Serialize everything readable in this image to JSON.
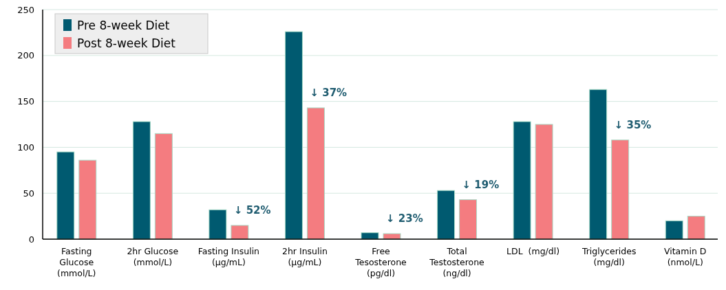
{
  "chart_data": {
    "type": "bar",
    "categories": [
      "Fasting\nGlucose\n(mmol/L)",
      "2hr Glucose\n(mmol/L)",
      "Fasting Insulin\n(µg/mL)",
      "2hr Insulin\n(µg/mL)",
      "Free\nTesosterone\n(pg/dl)",
      "Total\nTestosterone\n(ng/dl)",
      "LDL  (mg/dl)",
      "Triglycerides\n(mg/dl)",
      "Vitamin D\n(nmol/L)"
    ],
    "series": [
      {
        "name": "Pre 8-week Diet",
        "color": "#005a70",
        "values": [
          95,
          128,
          32,
          226,
          7,
          53,
          128,
          163,
          20
        ]
      },
      {
        "name": "Post 8-week Diet",
        "color": "#f47c80",
        "values": [
          86,
          115,
          15,
          143,
          6,
          43,
          125,
          108,
          25
        ]
      }
    ],
    "annotations": [
      {
        "text": "↓ 52%",
        "x": "Fasting Insulin\n(µg/mL)",
        "y": 15
      },
      {
        "text": "↓ 37%",
        "x": "2hr Insulin\n(µg/mL)",
        "y": 143
      },
      {
        "text": "↓ 23%",
        "x": "Free\nTesosterone\n(pg/dl)",
        "y": 6
      },
      {
        "text": "↓ 19%",
        "x": "Total\nTestosterone\n(ng/dl)",
        "y": 43
      },
      {
        "text": "↓ 35%",
        "x": "Triglycerides\n(mg/dl)",
        "y": 108
      }
    ],
    "ylim": [
      0,
      250
    ],
    "yticks": [
      0,
      50,
      100,
      150,
      200,
      250
    ],
    "grid": "y",
    "legend": "top left"
  }
}
